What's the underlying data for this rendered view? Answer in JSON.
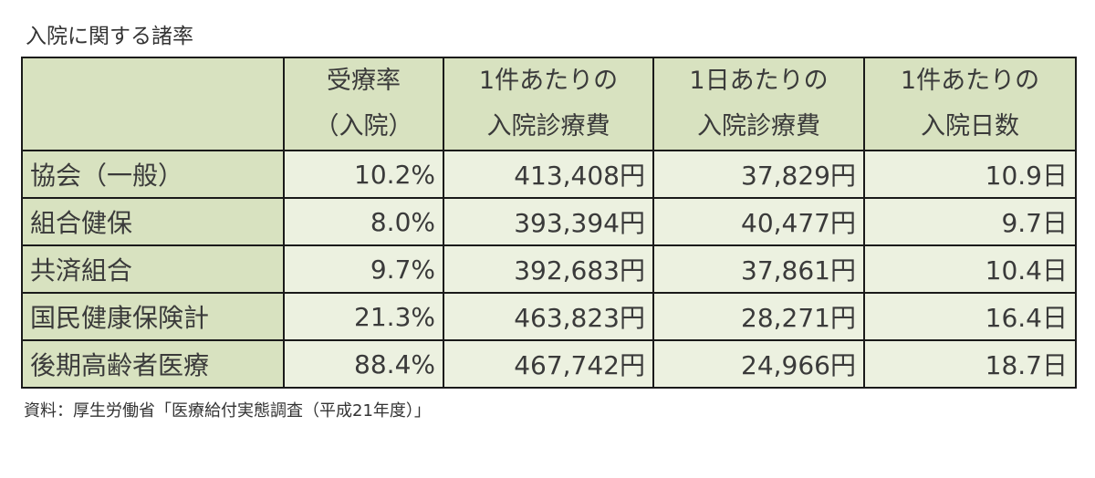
{
  "title": "入院に関する諸率",
  "table": {
    "columns": [
      {
        "line1": "",
        "line2": ""
      },
      {
        "line1": "受療率",
        "line2": "（入院）"
      },
      {
        "line1": "1件あたりの",
        "line2": "入院診療費"
      },
      {
        "line1": "1日あたりの",
        "line2": "入院診療費"
      },
      {
        "line1": "1件あたりの",
        "line2": "入院日数"
      }
    ],
    "rows": [
      {
        "label": "協会（一般）",
        "rate": "10.2%",
        "cost_per_case": "413,408円",
        "cost_per_day": "37,829円",
        "days_per_case": "10.9日"
      },
      {
        "label": "組合健保",
        "rate": "8.0%",
        "cost_per_case": "393,394円",
        "cost_per_day": "40,477円",
        "days_per_case": "9.7日"
      },
      {
        "label": "共済組合",
        "rate": "9.7%",
        "cost_per_case": "392,683円",
        "cost_per_day": "37,861円",
        "days_per_case": "10.4日"
      },
      {
        "label": "国民健康保険計",
        "rate": "21.3%",
        "cost_per_case": "463,823円",
        "cost_per_day": "28,271円",
        "days_per_case": "16.4日"
      },
      {
        "label": "後期高齢者医療",
        "rate": "88.4%",
        "cost_per_case": "467,742円",
        "cost_per_day": "24,966円",
        "days_per_case": "18.7日"
      }
    ]
  },
  "source": "資料：厚生労働省「医療給付実態調査（平成21年度）」",
  "colors": {
    "header_bg": "#d8e2c0",
    "cell_bg": "#ecf1e0",
    "border": "#1a1a1a"
  }
}
